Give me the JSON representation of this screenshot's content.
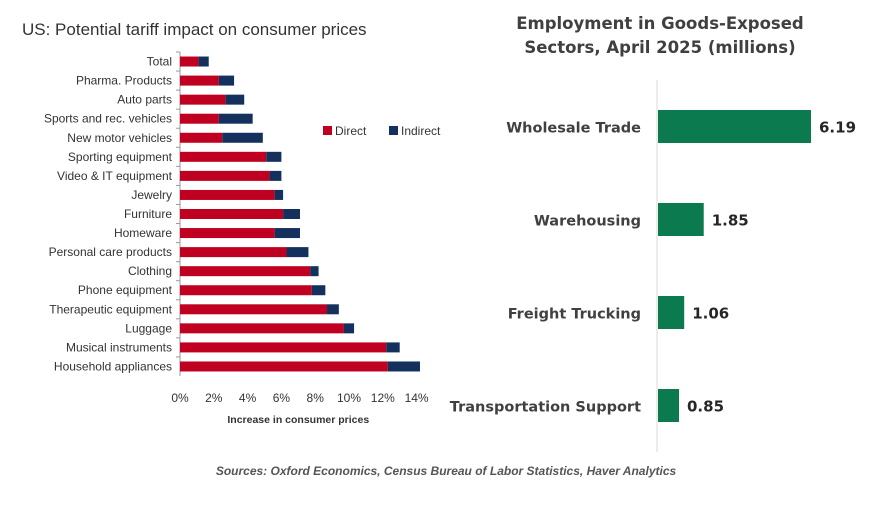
{
  "left_title": "US: Potential tariff impact on consumer prices",
  "right_title_line1": "Employment in Goods-Exposed",
  "right_title_line2": "Sectors, April 2025 (millions)",
  "source": "Sources: Oxford Economics, Census Bureau of Labor Statistics, Haver Analytics",
  "chart_data": [
    {
      "type": "bar",
      "orientation": "horizontal",
      "stacked": true,
      "title": "US: Potential tariff impact on consumer prices",
      "xlabel": "Increase in consumer prices",
      "ylabel": "",
      "xlim": [
        0,
        14
      ],
      "x_ticks": [
        "0%",
        "2%",
        "4%",
        "6%",
        "8%",
        "10%",
        "12%",
        "14%"
      ],
      "legend_position": "top-right",
      "categories": [
        "Total",
        "Pharma. Products",
        "Auto parts",
        "Sports and rec. vehicles",
        "New motor vehicles",
        "Sporting equipment",
        "Video & IT equipment",
        "Jewelry",
        "Furniture",
        "Homeware",
        "Personal care products",
        "Clothing",
        "Phone equipment",
        "Therapeutic  equipment",
        "Luggage",
        "Musical instruments",
        "Household appliances"
      ],
      "series": [
        {
          "name": "Direct",
          "color": "#C00020",
          "values": [
            1.1,
            2.3,
            2.7,
            2.3,
            2.5,
            5.1,
            5.3,
            5.6,
            6.1,
            5.6,
            6.3,
            7.7,
            7.8,
            8.7,
            9.7,
            12.2,
            12.3
          ]
        },
        {
          "name": "Indirect",
          "color": "#13315C",
          "values": [
            0.6,
            0.9,
            1.1,
            2.0,
            2.4,
            0.9,
            0.7,
            0.5,
            1.0,
            1.5,
            1.3,
            0.5,
            0.8,
            0.7,
            0.6,
            0.8,
            1.9
          ]
        }
      ]
    },
    {
      "type": "bar",
      "orientation": "horizontal",
      "title": "Employment in Goods-Exposed Sectors, April 2025 (millions)",
      "xlabel": "",
      "ylabel": "",
      "categories": [
        "Wholesale Trade",
        "Warehousing",
        "Freight Trucking",
        "Transportation Support"
      ],
      "values": [
        6.19,
        1.85,
        1.06,
        0.85
      ],
      "value_labels": [
        "6.19",
        "1.85",
        "1.06",
        "0.85"
      ],
      "color": "#0B7A4E",
      "xlim": [
        0,
        6.19
      ]
    }
  ]
}
